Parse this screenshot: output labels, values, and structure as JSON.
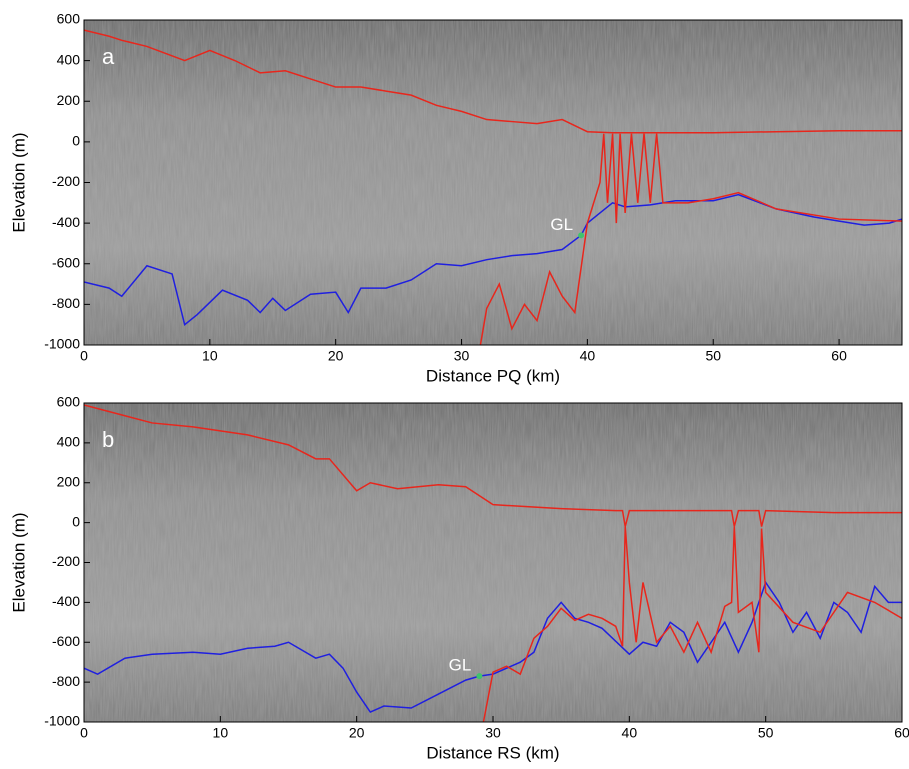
{
  "chart_data": [
    {
      "type": "line",
      "panel_label": "a",
      "xlabel": "Distance PQ (km)",
      "ylabel": "Elevation (m)",
      "xlim": [
        0,
        65
      ],
      "ylim": [
        -1000,
        600
      ],
      "xticks": [
        0,
        10,
        20,
        30,
        40,
        50,
        60
      ],
      "yticks": [
        -1000,
        -800,
        -600,
        -400,
        -200,
        0,
        200,
        400,
        600
      ],
      "series": [
        {
          "color": "#e8261c",
          "x": [
            0,
            2,
            3,
            5,
            8,
            10,
            12,
            14,
            16,
            18,
            20,
            22,
            24,
            26,
            28,
            30,
            32,
            34,
            36,
            38,
            40,
            42,
            45,
            50,
            55,
            60,
            65
          ],
          "values": [
            550,
            520,
            500,
            470,
            400,
            450,
            400,
            340,
            350,
            310,
            270,
            270,
            250,
            230,
            180,
            150,
            110,
            100,
            90,
            110,
            50,
            45,
            45,
            45,
            50,
            55,
            55
          ]
        },
        {
          "color": "#1f1fe0",
          "x": [
            0,
            2,
            3,
            5,
            7,
            8,
            9,
            11,
            13,
            14,
            15,
            16,
            18,
            20,
            21,
            22,
            24,
            26,
            28,
            30,
            32,
            34,
            36,
            38,
            39.5,
            40,
            41,
            42,
            43,
            45,
            47,
            50,
            52,
            55,
            58,
            60,
            62,
            64,
            65
          ],
          "values": [
            -690,
            -720,
            -760,
            -610,
            -650,
            -900,
            -850,
            -730,
            -780,
            -840,
            -770,
            -830,
            -750,
            -740,
            -840,
            -720,
            -720,
            -680,
            -600,
            -610,
            -580,
            -560,
            -550,
            -530,
            -460,
            -400,
            -350,
            -300,
            -320,
            -310,
            -290,
            -290,
            -260,
            -330,
            -370,
            -390,
            -410,
            -400,
            -380
          ]
        },
        {
          "color": "#e8261c",
          "x": [
            31.5,
            32,
            33,
            34,
            35,
            36,
            37,
            38,
            39,
            40,
            41,
            41.3,
            41.6,
            42,
            42.3,
            42.6,
            43,
            43.5,
            44,
            44.5,
            45,
            45.5,
            46,
            48,
            50,
            52,
            55,
            60,
            65
          ],
          "values": [
            -1000,
            -820,
            -700,
            -920,
            -800,
            -880,
            -640,
            -760,
            -840,
            -400,
            -200,
            40,
            -300,
            40,
            -400,
            40,
            -350,
            40,
            -300,
            40,
            -300,
            40,
            -300,
            -300,
            -280,
            -250,
            -330,
            -380,
            -390
          ]
        }
      ],
      "annotations": [
        {
          "text": "GL",
          "x": 39.5,
          "y": -460,
          "color": "#3ec46d"
        }
      ]
    },
    {
      "type": "line",
      "panel_label": "b",
      "xlabel": "Distance RS (km)",
      "ylabel": "Elevation (m)",
      "xlim": [
        0,
        60
      ],
      "ylim": [
        -1000,
        600
      ],
      "xticks": [
        0,
        10,
        20,
        30,
        40,
        50,
        60
      ],
      "yticks": [
        -1000,
        -800,
        -600,
        -400,
        -200,
        0,
        200,
        400,
        600
      ],
      "series": [
        {
          "color": "#e8261c",
          "x": [
            0,
            5,
            8,
            12,
            15,
            17,
            18,
            20,
            21,
            23,
            26,
            28,
            30,
            35,
            39,
            39.5,
            39.7,
            40,
            45,
            47.5,
            47.7,
            48,
            49.5,
            49.7,
            50,
            55,
            60
          ],
          "values": [
            590,
            500,
            480,
            440,
            390,
            320,
            320,
            160,
            200,
            170,
            190,
            180,
            90,
            70,
            60,
            60,
            -20,
            60,
            60,
            60,
            -20,
            60,
            60,
            -20,
            60,
            50,
            50
          ]
        },
        {
          "color": "#1f1fe0",
          "x": [
            0,
            1,
            3,
            5,
            8,
            10,
            12,
            14,
            15,
            17,
            18,
            19,
            20,
            21,
            22,
            24,
            26,
            28,
            29,
            30,
            32,
            33,
            34,
            35,
            36,
            37,
            38,
            40,
            41,
            42,
            43,
            44,
            45,
            46,
            47,
            48,
            49,
            50,
            51,
            52,
            53,
            54,
            55,
            56,
            57,
            58,
            59,
            60
          ],
          "values": [
            -730,
            -760,
            -680,
            -660,
            -650,
            -660,
            -630,
            -620,
            -600,
            -680,
            -660,
            -730,
            -850,
            -950,
            -920,
            -930,
            -860,
            -790,
            -770,
            -760,
            -700,
            -650,
            -480,
            -400,
            -480,
            -500,
            -530,
            -660,
            -600,
            -620,
            -500,
            -550,
            -700,
            -600,
            -500,
            -650,
            -500,
            -300,
            -400,
            -550,
            -450,
            -580,
            -400,
            -450,
            -550,
            -320,
            -400,
            -400
          ]
        },
        {
          "color": "#e8261c",
          "x": [
            29.3,
            30,
            31,
            32,
            33,
            34,
            35,
            36,
            37,
            38,
            39,
            39.5,
            39.7,
            40,
            40.5,
            41,
            42,
            43,
            44,
            45,
            46,
            47,
            47.5,
            47.7,
            48,
            49,
            49.5,
            49.7,
            50,
            52,
            54,
            56,
            58,
            60
          ],
          "values": [
            -1000,
            -750,
            -720,
            -760,
            -580,
            -520,
            -430,
            -490,
            -460,
            -480,
            -520,
            -620,
            -20,
            -300,
            -600,
            -300,
            -600,
            -520,
            -650,
            -500,
            -650,
            -420,
            -400,
            -20,
            -450,
            -400,
            -650,
            -30,
            -350,
            -500,
            -550,
            -350,
            -400,
            -480
          ]
        }
      ],
      "annotations": [
        {
          "text": "GL",
          "x": 29,
          "y": -770,
          "color": "#3ec46d"
        }
      ]
    }
  ]
}
